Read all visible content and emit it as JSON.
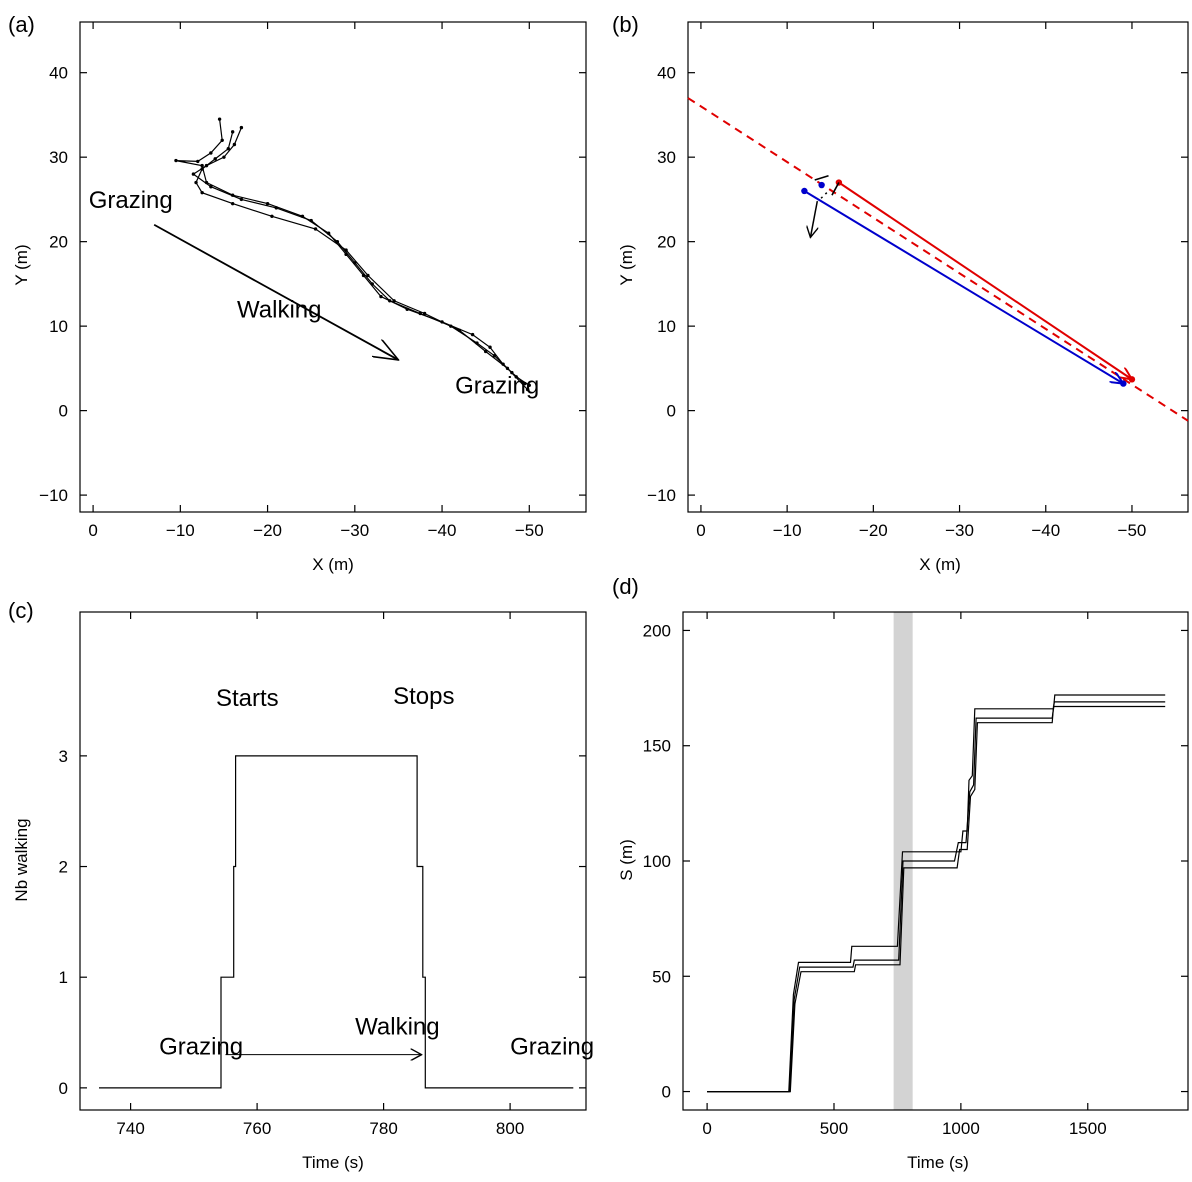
{
  "chart_data": [
    {
      "panel": "(a)",
      "type": "line",
      "xlabel": "X (m)",
      "ylabel": "Y (m)",
      "xlim": [
        1.5,
        -56.5
      ],
      "ylim": [
        -12,
        46
      ],
      "xticks": [
        0,
        -10,
        -20,
        -30,
        -40,
        -50
      ],
      "yticks": [
        -10,
        0,
        10,
        20,
        30,
        40
      ],
      "annotations": [
        {
          "text": "Grazing",
          "x": 0.5,
          "y": 24
        },
        {
          "text": "Walking",
          "x": -16.5,
          "y": 11
        },
        {
          "text": "Grazing",
          "x": -41.5,
          "y": 2
        },
        {
          "text": "",
          "type": "arrow",
          "from": [
            -7,
            22
          ],
          "to": [
            -35,
            6
          ]
        }
      ],
      "series": [
        {
          "points": [
            [
              -14.5,
              34.5
            ],
            [
              -14.8,
              32
            ],
            [
              -13.5,
              30.5
            ],
            [
              -12,
              29.5
            ],
            [
              -9.5,
              29.6
            ],
            [
              -12.5,
              29
            ],
            [
              -13,
              27
            ],
            [
              -16,
              25.5
            ],
            [
              -20,
              24.5
            ],
            [
              -24,
              23
            ],
            [
              -27,
              21
            ],
            [
              -29,
              18.5
            ],
            [
              -31,
              16
            ],
            [
              -33,
              13.5
            ],
            [
              -36,
              12
            ],
            [
              -40,
              10.5
            ],
            [
              -43.5,
              9
            ],
            [
              -45.5,
              7.5
            ],
            [
              -47,
              5.5
            ],
            [
              -48.5,
              4
            ],
            [
              -50,
              3
            ]
          ]
        },
        {
          "points": [
            [
              -17,
              33.5
            ],
            [
              -16.2,
              31.5
            ],
            [
              -15,
              30
            ],
            [
              -13,
              29
            ],
            [
              -11.5,
              28
            ],
            [
              -13.5,
              26.5
            ],
            [
              -17,
              25
            ],
            [
              -21,
              24
            ],
            [
              -25,
              22.5
            ],
            [
              -28,
              20
            ],
            [
              -30,
              17.5
            ],
            [
              -32,
              15
            ],
            [
              -34,
              13
            ],
            [
              -37.5,
              11.5
            ],
            [
              -41,
              10
            ],
            [
              -44,
              8
            ],
            [
              -46,
              6.5
            ],
            [
              -48,
              4.5
            ],
            [
              -49.5,
              3.2
            ]
          ]
        },
        {
          "points": [
            [
              -16,
              33
            ],
            [
              -15.5,
              31
            ],
            [
              -14,
              29.8
            ],
            [
              -12.5,
              28.6
            ],
            [
              -11.8,
              27
            ],
            [
              -12.5,
              25.8
            ],
            [
              -16,
              24.5
            ],
            [
              -20.5,
              23
            ],
            [
              -25.5,
              21.5
            ],
            [
              -29,
              19
            ],
            [
              -31.5,
              16
            ],
            [
              -34.5,
              13
            ],
            [
              -38,
              11.5
            ],
            [
              -42,
              9.5
            ],
            [
              -45,
              7
            ],
            [
              -47.5,
              5
            ],
            [
              -49.8,
              2.5
            ]
          ]
        }
      ]
    },
    {
      "panel": "(b)",
      "type": "line",
      "xlabel": "X (m)",
      "ylabel": "Y (m)",
      "xlim": [
        1.5,
        -56.5
      ],
      "ylim": [
        -12,
        46
      ],
      "xticks": [
        0,
        -10,
        -20,
        -30,
        -40,
        -50
      ],
      "yticks": [
        -10,
        0,
        10,
        20,
        30,
        40
      ],
      "dashed_line": {
        "color": "#e00000",
        "from": [
          1.5,
          37
        ],
        "to": [
          -56.5,
          -1.2
        ]
      },
      "vectors": [
        {
          "color": "#e00000",
          "from": [
            -16,
            27
          ],
          "to": [
            -50,
            3.7
          ]
        },
        {
          "color": "#0000cc",
          "from": [
            -12,
            26
          ],
          "to": [
            -49,
            3.2
          ]
        }
      ],
      "mid_point": {
        "color": "#0000cc",
        "x": -14,
        "y": 26.7
      },
      "gap_arrow": {
        "from": [
          -13.5,
          24.8
        ],
        "to": [
          -12.7,
          20.5
        ]
      }
    },
    {
      "panel": "(c)",
      "type": "line",
      "xlabel": "Time (s)",
      "ylabel": "Nb walking",
      "xlim": [
        732,
        812
      ],
      "ylim": [
        -0.2,
        4.3
      ],
      "xticks": [
        740,
        760,
        780,
        800
      ],
      "yticks": [
        0,
        1,
        2,
        3
      ],
      "annotations": [
        {
          "text": "Starts",
          "x": 753.5,
          "y": 3.45
        },
        {
          "text": "Stops",
          "x": 781.5,
          "y": 3.47
        },
        {
          "text": "Grazing",
          "x": 744.5,
          "y": 0.3
        },
        {
          "text": "Walking",
          "x": 775.5,
          "y": 0.48
        },
        {
          "text": "Grazing",
          "x": 800,
          "y": 0.3
        },
        {
          "text": "",
          "type": "arrow",
          "from": [
            755,
            0.3
          ],
          "to": [
            786,
            0.3
          ]
        }
      ],
      "series": [
        {
          "points": [
            [
              735,
              0
            ],
            [
              754.3,
              0
            ],
            [
              754.3,
              1
            ],
            [
              756.3,
              1
            ],
            [
              756.3,
              2
            ],
            [
              756.6,
              2
            ],
            [
              756.6,
              3
            ],
            [
              785.3,
              3
            ],
            [
              785.3,
              2
            ],
            [
              786.2,
              2
            ],
            [
              786.2,
              1
            ],
            [
              786.6,
              1
            ],
            [
              786.6,
              0
            ],
            [
              810,
              0
            ]
          ]
        }
      ]
    },
    {
      "panel": "(d)",
      "type": "line",
      "xlabel": "Time (s)",
      "ylabel": "S (m)",
      "xlim": [
        -95,
        1895
      ],
      "ylim": [
        -8,
        208
      ],
      "xticks": [
        0,
        500,
        1000,
        1500
      ],
      "yticks": [
        0,
        50,
        100,
        150,
        200
      ],
      "shaded_interval": {
        "from": 735,
        "to": 810,
        "color": "#d3d3d3"
      },
      "series": [
        {
          "points": [
            [
              0,
              0
            ],
            [
              322,
              0
            ],
            [
              340,
              42
            ],
            [
              360,
              56
            ],
            [
              565,
              56
            ],
            [
              570,
              63
            ],
            [
              750,
              63
            ],
            [
              770,
              104
            ],
            [
              1000,
              104
            ],
            [
              1008,
              113
            ],
            [
              1025,
              113
            ],
            [
              1032,
              135
            ],
            [
              1045,
              137
            ],
            [
              1055,
              166
            ],
            [
              1365,
              166
            ],
            [
              1370,
              172
            ],
            [
              1805,
              172
            ]
          ]
        },
        {
          "points": [
            [
              0,
              0
            ],
            [
              325,
              0
            ],
            [
              343,
              40
            ],
            [
              365,
              54
            ],
            [
              575,
              54
            ],
            [
              580,
              57
            ],
            [
              755,
              57
            ],
            [
              772,
              100
            ],
            [
              975,
              100
            ],
            [
              990,
              108
            ],
            [
              1020,
              108
            ],
            [
              1035,
              130
            ],
            [
              1050,
              133
            ],
            [
              1060,
              162
            ],
            [
              1360,
              162
            ],
            [
              1368,
              169
            ],
            [
              1805,
              169
            ]
          ]
        },
        {
          "points": [
            [
              0,
              0
            ],
            [
              328,
              0
            ],
            [
              346,
              38
            ],
            [
              370,
              52
            ],
            [
              580,
              52
            ],
            [
              585,
              55
            ],
            [
              760,
              55
            ],
            [
              775,
              97
            ],
            [
              985,
              97
            ],
            [
              995,
              105
            ],
            [
              1025,
              105
            ],
            [
              1038,
              128
            ],
            [
              1055,
              131
            ],
            [
              1065,
              160
            ],
            [
              1360,
              160
            ],
            [
              1365,
              167
            ],
            [
              1805,
              167
            ]
          ]
        }
      ]
    }
  ]
}
